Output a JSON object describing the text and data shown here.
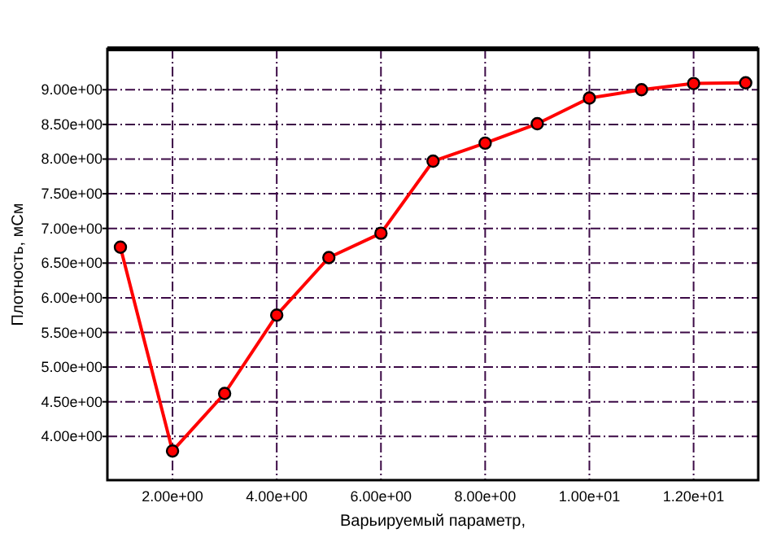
{
  "chart_data": {
    "type": "line",
    "xlabel": "Варьируемый параметр,",
    "ylabel": "Плотность, мСм",
    "x": [
      1,
      2,
      3,
      4,
      5,
      6,
      7,
      8,
      9,
      10,
      11,
      12,
      13
    ],
    "series": [
      {
        "color": "#ff0000",
        "values": [
          6.73,
          3.79,
          4.62,
          5.75,
          6.58,
          6.93,
          7.97,
          8.23,
          8.51,
          8.88,
          9.0,
          9.09,
          9.1
        ]
      }
    ],
    "xlim": [
      0.75,
      13.24
    ],
    "ylim": [
      3.37,
      9.59
    ],
    "xticks": [
      {
        "value": 2,
        "label": "2.00e+00"
      },
      {
        "value": 4,
        "label": "4.00e+00"
      },
      {
        "value": 6,
        "label": "6.00e+00"
      },
      {
        "value": 8,
        "label": "8.00e+00"
      },
      {
        "value": 10,
        "label": "1.00e+01"
      },
      {
        "value": 12,
        "label": "1.20e+01"
      }
    ],
    "yticks": [
      {
        "value": 4,
        "label": "4.00e+00"
      },
      {
        "value": 4.5,
        "label": "4.50e+00"
      },
      {
        "value": 5,
        "label": "5.00e+00"
      },
      {
        "value": 5.5,
        "label": "5.50e+00"
      },
      {
        "value": 6,
        "label": "6.00e+00"
      },
      {
        "value": 6.5,
        "label": "6.50e+00"
      },
      {
        "value": 7,
        "label": "7.00e+00"
      },
      {
        "value": 7.5,
        "label": "7.50e+00"
      },
      {
        "value": 8,
        "label": "8.00e+00"
      },
      {
        "value": 8.5,
        "label": "8.50e+00"
      },
      {
        "value": 9,
        "label": "9.00e+00"
      }
    ],
    "grid": true,
    "marker": "circle",
    "line_style": "solid"
  }
}
